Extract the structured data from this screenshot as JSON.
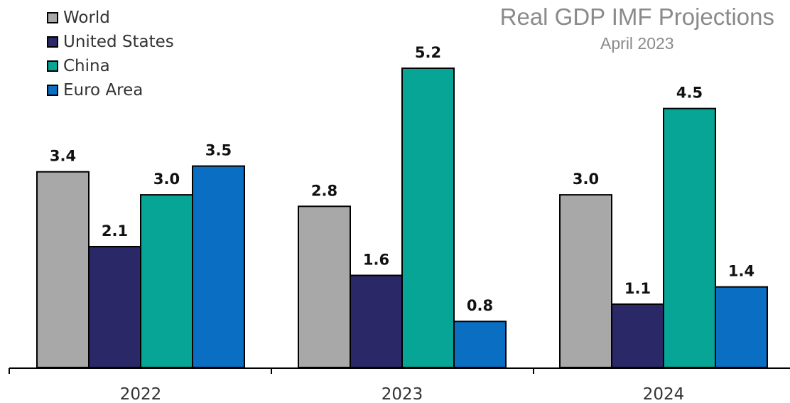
{
  "chart_data": {
    "type": "bar",
    "title": "Real GDP IMF Projections",
    "subtitle": "April 2023",
    "categories": [
      "2022",
      "2023",
      "2024"
    ],
    "series": [
      {
        "name": "World",
        "values": [
          3.4,
          2.8,
          3.0
        ],
        "color": "#a8a8a8"
      },
      {
        "name": "United States",
        "values": [
          2.1,
          1.6,
          1.1
        ],
        "color": "#2a2866"
      },
      {
        "name": "China",
        "values": [
          3.0,
          5.2,
          4.5
        ],
        "color": "#07a596"
      },
      {
        "name": "Euro Area",
        "values": [
          3.5,
          0.8,
          1.4
        ],
        "color": "#0a6ec3"
      }
    ],
    "xlabel": "",
    "ylabel": "",
    "ylim": [
      0,
      5.2
    ],
    "grid": false,
    "legend_position": "top-left",
    "data_labels": true
  }
}
